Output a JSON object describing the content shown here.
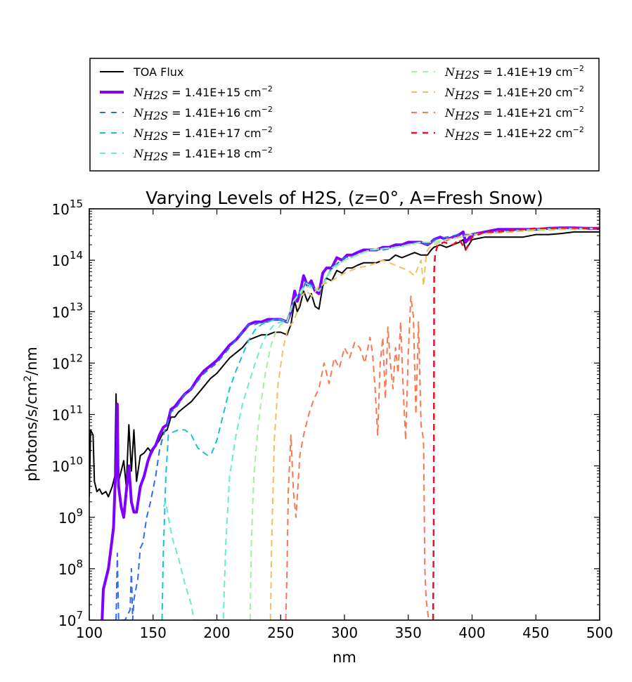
{
  "chart_data": {
    "type": "line",
    "title": "Varying Levels of H2S, (z=0°, A=Fresh Snow)",
    "xlabel": "nm",
    "ylabel": "photons/s/cm²/nm",
    "ylabel_parts": {
      "pre": "photons/s/cm",
      "sup": "2",
      "post": "/nm"
    },
    "xlim": [
      100,
      500
    ],
    "ylim_log10": [
      7,
      15
    ],
    "yscale": "log",
    "xticks": [
      "100",
      "150",
      "200",
      "250",
      "300",
      "350",
      "400",
      "450",
      "500"
    ],
    "yticks": [
      {
        "base": "10",
        "exp": "7"
      },
      {
        "base": "10",
        "exp": "8"
      },
      {
        "base": "10",
        "exp": "9"
      },
      {
        "base": "10",
        "exp": "10"
      },
      {
        "base": "10",
        "exp": "11"
      },
      {
        "base": "10",
        "exp": "12"
      },
      {
        "base": "10",
        "exp": "13"
      },
      {
        "base": "10",
        "exp": "14"
      },
      {
        "base": "10",
        "exp": "15"
      }
    ],
    "legend_placement": "above plot, two columns",
    "series": [
      {
        "name": "TOA Flux",
        "color": "#000000",
        "dash": "solid",
        "width": 2,
        "x": [
          100,
          101,
          103,
          104,
          106,
          108,
          110,
          113,
          115,
          118,
          120,
          121,
          122,
          123,
          125,
          127,
          129,
          131,
          133,
          135,
          137,
          140,
          143,
          146,
          149,
          152,
          155,
          158,
          161,
          164,
          167,
          170,
          175,
          180,
          185,
          190,
          195,
          200,
          205,
          210,
          215,
          220,
          225,
          230,
          235,
          240,
          245,
          250,
          255,
          258,
          261,
          263,
          265,
          268,
          271,
          274,
          277,
          280,
          283,
          286,
          290,
          294,
          298,
          302,
          306,
          310,
          315,
          320,
          325,
          330,
          335,
          340,
          345,
          350,
          355,
          360,
          365,
          368,
          370,
          375,
          380,
          385,
          390,
          393,
          395,
          400,
          410,
          420,
          430,
          440,
          450,
          460,
          470,
          480,
          490,
          500
        ],
        "y": [
          9.4,
          10.7,
          10.6,
          9.7,
          9.5,
          9.55,
          9.45,
          9.5,
          9.4,
          9.6,
          9.8,
          11.4,
          9.9,
          9.7,
          9.9,
          10.1,
          9.6,
          10.8,
          9.9,
          10.7,
          9.7,
          10.2,
          10.25,
          10.35,
          10.25,
          10.4,
          10.5,
          10.65,
          10.7,
          10.95,
          10.95,
          11.05,
          11.15,
          11.25,
          11.4,
          11.55,
          11.7,
          11.8,
          11.95,
          12.1,
          12.2,
          12.3,
          12.45,
          12.5,
          12.55,
          12.55,
          12.6,
          12.6,
          12.55,
          12.75,
          13.2,
          13.0,
          13.1,
          13.4,
          13.2,
          13.35,
          13.1,
          13.05,
          13.5,
          13.65,
          13.6,
          13.8,
          13.75,
          13.85,
          13.85,
          13.9,
          13.95,
          13.95,
          13.95,
          14.0,
          14.0,
          14.1,
          14.05,
          14.1,
          14.15,
          14.1,
          14.1,
          14.2,
          14.25,
          14.3,
          14.25,
          14.3,
          14.35,
          14.4,
          14.2,
          14.4,
          14.45,
          14.45,
          14.45,
          14.45,
          14.5,
          14.5,
          14.52,
          14.55,
          14.55,
          14.55
        ]
      },
      {
        "name": "N_{H2S} = 1.41E+15 cm⁻²",
        "color": "#8000ff",
        "dash": "solid",
        "width": 4,
        "x": [
          110,
          111,
          112,
          113,
          115,
          117,
          119,
          120,
          121,
          122,
          122.5,
          123,
          125,
          127,
          129,
          131,
          133,
          135,
          137,
          140,
          143,
          146,
          149,
          152,
          155,
          158,
          161,
          164,
          167,
          170,
          175,
          180,
          185,
          190,
          195,
          200,
          205,
          210,
          215,
          220,
          225,
          230,
          235,
          240,
          245,
          250,
          255,
          258,
          261,
          263,
          265,
          268,
          271,
          274,
          277,
          280,
          283,
          286,
          290,
          294,
          298,
          302,
          306,
          310,
          315,
          320,
          325,
          330,
          335,
          340,
          345,
          350,
          355,
          360,
          365,
          368,
          370,
          375,
          380,
          385,
          390,
          393,
          395,
          400,
          410,
          420,
          430,
          440,
          450,
          460,
          470,
          480,
          490,
          500
        ],
        "y": [
          7.0,
          7.6,
          7.7,
          7.8,
          8.0,
          8.4,
          8.8,
          9.5,
          10.0,
          11.2,
          10.0,
          9.6,
          9.2,
          9.0,
          9.5,
          10.0,
          9.3,
          9.1,
          9.1,
          9.6,
          9.8,
          10.1,
          10.3,
          10.4,
          10.6,
          10.75,
          10.8,
          11.1,
          11.15,
          11.25,
          11.4,
          11.5,
          11.7,
          11.85,
          11.95,
          12.05,
          12.2,
          12.35,
          12.45,
          12.6,
          12.75,
          12.8,
          12.8,
          12.85,
          12.85,
          12.85,
          12.8,
          13.0,
          13.4,
          13.2,
          13.35,
          13.7,
          13.5,
          13.6,
          13.4,
          13.35,
          13.75,
          13.85,
          13.85,
          14.05,
          14.0,
          14.1,
          14.1,
          14.15,
          14.2,
          14.2,
          14.2,
          14.25,
          14.25,
          14.3,
          14.3,
          14.35,
          14.35,
          14.35,
          14.3,
          14.35,
          14.4,
          14.45,
          14.4,
          14.45,
          14.5,
          14.55,
          14.35,
          14.5,
          14.55,
          14.6,
          14.6,
          14.6,
          14.6,
          14.62,
          14.63,
          14.63,
          14.62,
          14.62
        ]
      },
      {
        "name": "N_{H2S} = 1.41E+16 cm⁻²",
        "color": "#2f6cf0",
        "dash": "dashed",
        "width": 2,
        "x": [
          121,
          122,
          123,
          125,
          128,
          132,
          133,
          134,
          135,
          138,
          140,
          142,
          145,
          148,
          152,
          155,
          158,
          161,
          164,
          167,
          170,
          175,
          180,
          185,
          190,
          195,
          200,
          205,
          210,
          215,
          220,
          225,
          230,
          235,
          240,
          245,
          250,
          255,
          260,
          265,
          270,
          275,
          280,
          290,
          300,
          310,
          320,
          330,
          340,
          350,
          360,
          365,
          368,
          370,
          380,
          390,
          400,
          420,
          440,
          460,
          480,
          500
        ],
        "y": [
          7.0,
          8.3,
          7.0,
          7.0,
          7.0,
          7.2,
          8.0,
          7.0,
          7.4,
          7.8,
          8.4,
          8.5,
          9.0,
          9.3,
          9.8,
          10.3,
          10.6,
          10.8,
          11.05,
          11.1,
          11.2,
          11.4,
          11.5,
          11.65,
          11.8,
          11.9,
          12.0,
          12.15,
          12.3,
          12.45,
          12.6,
          12.75,
          12.75,
          12.8,
          12.8,
          12.85,
          12.85,
          12.8,
          13.2,
          13.3,
          13.6,
          13.5,
          13.4,
          13.85,
          14.05,
          14.1,
          14.2,
          14.2,
          14.25,
          14.3,
          14.35,
          14.3,
          14.35,
          14.4,
          14.45,
          14.5,
          14.5,
          14.55,
          14.6,
          14.62,
          14.63,
          14.62
        ]
      },
      {
        "name": "N_{H2S} = 1.41E+17 cm⁻²",
        "color": "#18c1d8",
        "dash": "dashed",
        "width": 2,
        "x": [
          157,
          158,
          160,
          162,
          165,
          170,
          175,
          180,
          185,
          190,
          193,
          196,
          200,
          205,
          210,
          215,
          220,
          225,
          230,
          235,
          240,
          245,
          250,
          255,
          260,
          270,
          280,
          290,
          300,
          320,
          340,
          360,
          370,
          400,
          450,
          500
        ],
        "y": [
          7.0,
          8.3,
          9.8,
          10.6,
          10.65,
          10.7,
          10.7,
          10.6,
          10.35,
          10.25,
          10.2,
          10.25,
          10.5,
          11.0,
          11.5,
          11.85,
          12.15,
          12.45,
          12.65,
          12.75,
          12.8,
          12.85,
          12.85,
          12.8,
          13.2,
          13.55,
          13.4,
          13.85,
          14.0,
          14.2,
          14.25,
          14.35,
          14.35,
          14.5,
          14.6,
          14.62
        ]
      },
      {
        "name": "N_{H2S} = 1.41E+18 cm⁻²",
        "color": "#66ecd0",
        "dash": "dashed",
        "width": 2,
        "x": [
          158,
          160,
          162,
          165,
          170,
          175,
          180,
          182,
          205,
          207,
          210,
          215,
          220,
          225,
          230,
          235,
          240,
          245,
          250,
          255,
          260,
          270,
          280,
          290,
          300,
          320,
          340,
          360,
          370,
          400,
          450,
          500
        ],
        "y": [
          9.2,
          9.3,
          9.0,
          8.6,
          8.2,
          7.7,
          7.3,
          7.0,
          7.0,
          8.5,
          9.8,
          10.6,
          11.2,
          11.6,
          12.0,
          12.35,
          12.6,
          12.75,
          12.8,
          12.8,
          13.2,
          13.55,
          13.4,
          13.85,
          14.0,
          14.2,
          14.25,
          14.35,
          14.35,
          14.5,
          14.6,
          14.62
        ]
      },
      {
        "name": "N_{H2S} = 1.41E+19 cm⁻²",
        "color": "#a3f09e",
        "dash": "dashed",
        "width": 2,
        "x": [
          226,
          227,
          229,
          232,
          235,
          238,
          242,
          246,
          250,
          255,
          260,
          270,
          280,
          290,
          300,
          320,
          340,
          360,
          370,
          400,
          450,
          500
        ],
        "y": [
          7.0,
          8.5,
          9.8,
          10.7,
          11.3,
          11.8,
          12.3,
          12.6,
          12.75,
          12.8,
          13.2,
          13.5,
          13.4,
          13.8,
          14.0,
          14.2,
          14.25,
          14.35,
          14.35,
          14.5,
          14.6,
          14.62
        ]
      },
      {
        "name": "N_{H2S} = 1.41E+20 cm⁻²",
        "color": "#f0c060",
        "dash": "dashed",
        "width": 2,
        "x": [
          242,
          243,
          245,
          248,
          252,
          256,
          260,
          263,
          266,
          270,
          275,
          280,
          290,
          300,
          310,
          320,
          330,
          340,
          350,
          355,
          360,
          362,
          364,
          365,
          367,
          370,
          380,
          390,
          400,
          450,
          500
        ],
        "y": [
          7.0,
          8.5,
          10.5,
          11.6,
          12.3,
          12.7,
          12.8,
          13.0,
          13.3,
          13.4,
          13.3,
          13.5,
          13.6,
          13.75,
          13.85,
          13.9,
          14.0,
          13.9,
          13.8,
          13.7,
          14.0,
          13.5,
          14.1,
          14.2,
          14.25,
          14.3,
          14.4,
          14.45,
          14.5,
          14.58,
          14.62
        ]
      },
      {
        "name": "N_{H2S} = 1.41E+21 cm⁻²",
        "color": "#f87850",
        "dash": "dashed",
        "width": 2,
        "x": [
          254,
          255,
          256,
          258,
          260,
          262,
          265,
          268,
          272,
          276,
          280,
          284,
          288,
          292,
          296,
          300,
          304,
          308,
          312,
          316,
          320,
          322,
          324,
          326,
          328,
          330,
          332,
          334,
          336,
          338,
          340,
          342,
          344,
          346,
          348,
          350,
          352,
          354,
          356,
          358,
          360,
          362,
          363,
          364,
          365,
          366
        ],
        "y": [
          7.0,
          8.0,
          9.5,
          10.6,
          9.5,
          9.0,
          10.2,
          10.6,
          11.0,
          11.3,
          11.5,
          12.0,
          11.6,
          12.1,
          11.9,
          12.3,
          12.1,
          12.4,
          12.3,
          12.0,
          12.5,
          12.2,
          11.5,
          10.6,
          12.0,
          12.5,
          11.3,
          12.7,
          12.0,
          11.5,
          12.3,
          11.8,
          12.8,
          11.5,
          10.5,
          12.2,
          13.3,
          12.9,
          11.0,
          12.8,
          10.8,
          10.5,
          8.0,
          7.4,
          7.2,
          7.0
        ]
      },
      {
        "name": "N_{H2S} = 1.41E+22 cm⁻²",
        "color": "#e8102a",
        "dash": "dashed",
        "width": 2.5,
        "x": [
          369.5,
          370,
          370.3,
          371,
          373,
          378,
          385,
          390,
          395,
          400,
          410,
          420,
          430,
          440,
          450,
          460,
          470,
          480,
          490,
          500
        ],
        "y": [
          7.0,
          9.0,
          13.8,
          14.1,
          14.3,
          14.35,
          14.3,
          14.4,
          14.2,
          14.45,
          14.55,
          14.55,
          14.58,
          14.6,
          14.62,
          14.62,
          14.63,
          14.63,
          14.62,
          14.62
        ]
      }
    ]
  },
  "legend": {
    "items": [
      {
        "kind": "plain",
        "label": "TOA Flux"
      },
      {
        "kind": "math",
        "sym": "N",
        "sub": "H2S",
        "value": " = 1.41E+15 cm",
        "sup": "−2"
      },
      {
        "kind": "math",
        "sym": "N",
        "sub": "H2S",
        "value": " = 1.41E+16 cm",
        "sup": "−2"
      },
      {
        "kind": "math",
        "sym": "N",
        "sub": "H2S",
        "value": " = 1.41E+17 cm",
        "sup": "−2"
      },
      {
        "kind": "math",
        "sym": "N",
        "sub": "H2S",
        "value": " = 1.41E+18 cm",
        "sup": "−2"
      },
      {
        "kind": "math",
        "sym": "N",
        "sub": "H2S",
        "value": " = 1.41E+19 cm",
        "sup": "−2"
      },
      {
        "kind": "math",
        "sym": "N",
        "sub": "H2S",
        "value": " = 1.41E+20 cm",
        "sup": "−2"
      },
      {
        "kind": "math",
        "sym": "N",
        "sub": "H2S",
        "value": " = 1.41E+21 cm",
        "sup": "−2"
      },
      {
        "kind": "math",
        "sym": "N",
        "sub": "H2S",
        "value": " = 1.41E+22 cm",
        "sup": "−2"
      }
    ]
  }
}
